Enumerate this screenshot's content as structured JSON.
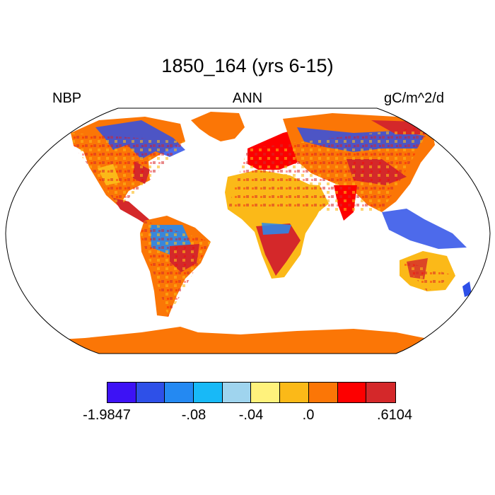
{
  "title": "1850_164 (yrs 6-15)",
  "left_label": "NBP",
  "center_label": "ANN",
  "right_label": "gC/m^2/d",
  "colorbar": {
    "colors": [
      "#3d12f5",
      "#2e50e8",
      "#2489f2",
      "#18b9f7",
      "#9fd4ee",
      "#fff27c",
      "#fbb918",
      "#fb7606",
      "#fd0000",
      "#d4282a"
    ],
    "tick_labels": [
      "-1.9847",
      "-.08",
      "-.04",
      ".0",
      ".6104"
    ]
  },
  "map": {
    "projection": "Robinson",
    "ocean_color": "#ffffff",
    "land_fill_colors": [
      "#fbb918",
      "#fb7606",
      "#d4282a",
      "#2e50e8",
      "#2489f2"
    ],
    "antarctica_color": "#fb7606",
    "greenland_color": "#fb7606"
  }
}
